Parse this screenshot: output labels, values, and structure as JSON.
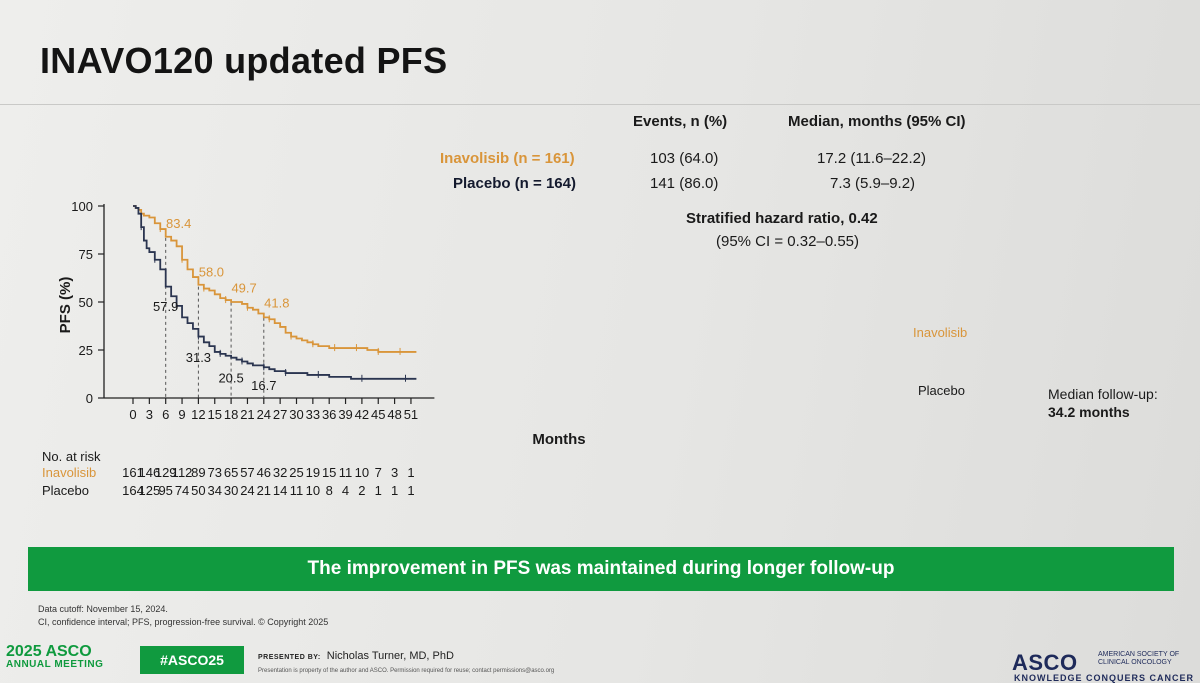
{
  "slide": {
    "title": "INAVO120 updated PFS",
    "header_events": "Events, n (%)",
    "header_median": "Median, months (95% CI)",
    "arms": [
      {
        "label": "Inavolisib (n = 161)",
        "events": "103 (64.0)",
        "median": "17.2 (11.6–22.2)",
        "color": "#d9953a"
      },
      {
        "label": "Placebo (n = 164)",
        "events": "141 (86.0)",
        "median": "7.3 (5.9–9.2)",
        "color": "#2b3550"
      }
    ],
    "hazard_ratio": "Stratified hazard ratio, 0.42",
    "hazard_ci": "(95% CI = 0.32–0.55)",
    "follow_up_label": "Median follow-up:",
    "follow_up_value": "34.2 months",
    "banner": "The improvement in PFS was maintained during longer follow-up",
    "footnote1": "Data cutoff: November 15, 2024.",
    "footnote2": "CI, confidence interval; PFS, progression-free survival. © Copyright 2025",
    "meeting_year": "2025 ASCO",
    "meeting_sub": "ANNUAL MEETING",
    "hashtag": "#ASCO25",
    "presented_by_label": "PRESENTED BY:",
    "presenter": "Nicholas Turner, MD, PhD",
    "property_note": "Presentation is property of the author and ASCO. Permission required for reuse; contact permissions@asco.org",
    "asco_logo": "ASCO",
    "asco_logo_sub": "AMERICAN SOCIETY OF CLINICAL ONCOLOGY",
    "asco_logo_tag": "KNOWLEDGE CONQUERS CANCER"
  },
  "risk_table": {
    "title": "No. at risk",
    "rows": [
      {
        "label": "Inavolisib",
        "color": "#d9953a",
        "values": [
          161,
          146,
          129,
          112,
          89,
          73,
          65,
          57,
          46,
          32,
          25,
          19,
          15,
          11,
          10,
          7,
          3,
          1
        ]
      },
      {
        "label": "Placebo",
        "color": "#2b3550",
        "values": [
          164,
          125,
          95,
          74,
          50,
          34,
          30,
          24,
          21,
          14,
          11,
          10,
          8,
          4,
          2,
          1,
          1,
          1
        ]
      }
    ]
  },
  "chart_data": {
    "type": "line",
    "title": "",
    "xlabel": "Months",
    "ylabel": "PFS (%)",
    "xlim": [
      0,
      52
    ],
    "ylim": [
      0,
      100
    ],
    "xticks": [
      0,
      3,
      6,
      9,
      12,
      15,
      18,
      21,
      24,
      27,
      30,
      33,
      36,
      39,
      42,
      45,
      48,
      51
    ],
    "yticks": [
      0,
      25,
      50,
      75,
      100
    ],
    "series": [
      {
        "name": "Inavolisib",
        "color": "#d9953a",
        "x": [
          0,
          0.5,
          1,
          1.5,
          2,
          3,
          4,
          5,
          6,
          7,
          8,
          9,
          10,
          11,
          12,
          13,
          14,
          15,
          16,
          17,
          18,
          19,
          20,
          21,
          22,
          23,
          24,
          25,
          26,
          27,
          28,
          29,
          30,
          31,
          32,
          33,
          34,
          35,
          36,
          37,
          38,
          39,
          40,
          41,
          42,
          43,
          44,
          45,
          46,
          47,
          48,
          49,
          50,
          51,
          52
        ],
        "y": [
          100,
          99,
          98,
          96,
          95,
          94,
          91,
          88,
          84,
          82,
          79,
          72,
          67,
          63,
          59,
          57,
          56,
          54,
          52,
          51,
          50,
          50,
          49,
          47,
          46,
          44,
          42,
          41,
          39,
          37,
          34,
          32,
          31,
          30,
          29,
          28,
          27,
          27,
          26,
          26,
          26,
          26,
          26,
          26,
          26,
          25,
          25,
          24,
          24,
          24,
          24,
          24,
          24,
          24,
          24
        ]
      },
      {
        "name": "Placebo",
        "color": "#2b3550",
        "x": [
          0,
          0.5,
          1,
          1.5,
          2,
          2.5,
          3,
          4,
          5,
          6,
          7,
          8,
          9,
          10,
          11,
          12,
          13,
          14,
          15,
          16,
          17,
          18,
          19,
          20,
          21,
          22,
          23,
          24,
          25,
          26,
          27,
          28,
          29,
          30,
          32,
          34,
          36,
          38,
          40,
          42,
          44,
          46,
          48,
          50,
          52
        ],
        "y": [
          100,
          99,
          96,
          89,
          82,
          78,
          76,
          72,
          67,
          58,
          53,
          48,
          42,
          39,
          36,
          32,
          29,
          27,
          24,
          23,
          22,
          21,
          20,
          19,
          18,
          17,
          17,
          16,
          15,
          14,
          14,
          13,
          13,
          13,
          12,
          12,
          11,
          11,
          10,
          10,
          10,
          10,
          10,
          10,
          10
        ]
      }
    ],
    "annotations": [
      {
        "text": "83.4",
        "x": 6,
        "y": 83.4,
        "series": "Inavolisib"
      },
      {
        "text": "58.0",
        "x": 12,
        "y": 58.0,
        "series": "Inavolisib"
      },
      {
        "text": "49.7",
        "x": 18,
        "y": 49.7,
        "series": "Inavolisib"
      },
      {
        "text": "41.8",
        "x": 24,
        "y": 41.8,
        "series": "Inavolisib"
      },
      {
        "text": "57.9",
        "x": 6,
        "y": 57.9,
        "series": "Placebo"
      },
      {
        "text": "31.3",
        "x": 12,
        "y": 31.3,
        "series": "Placebo"
      },
      {
        "text": "20.5",
        "x": 18,
        "y": 20.5,
        "series": "Placebo"
      },
      {
        "text": "16.7",
        "x": 24,
        "y": 16.7,
        "series": "Placebo"
      }
    ],
    "curve_labels": [
      {
        "text": "Inavolisib",
        "series": "Inavolisib"
      },
      {
        "text": "Placebo",
        "series": "Placebo"
      }
    ],
    "grid": false,
    "legend": "none"
  }
}
